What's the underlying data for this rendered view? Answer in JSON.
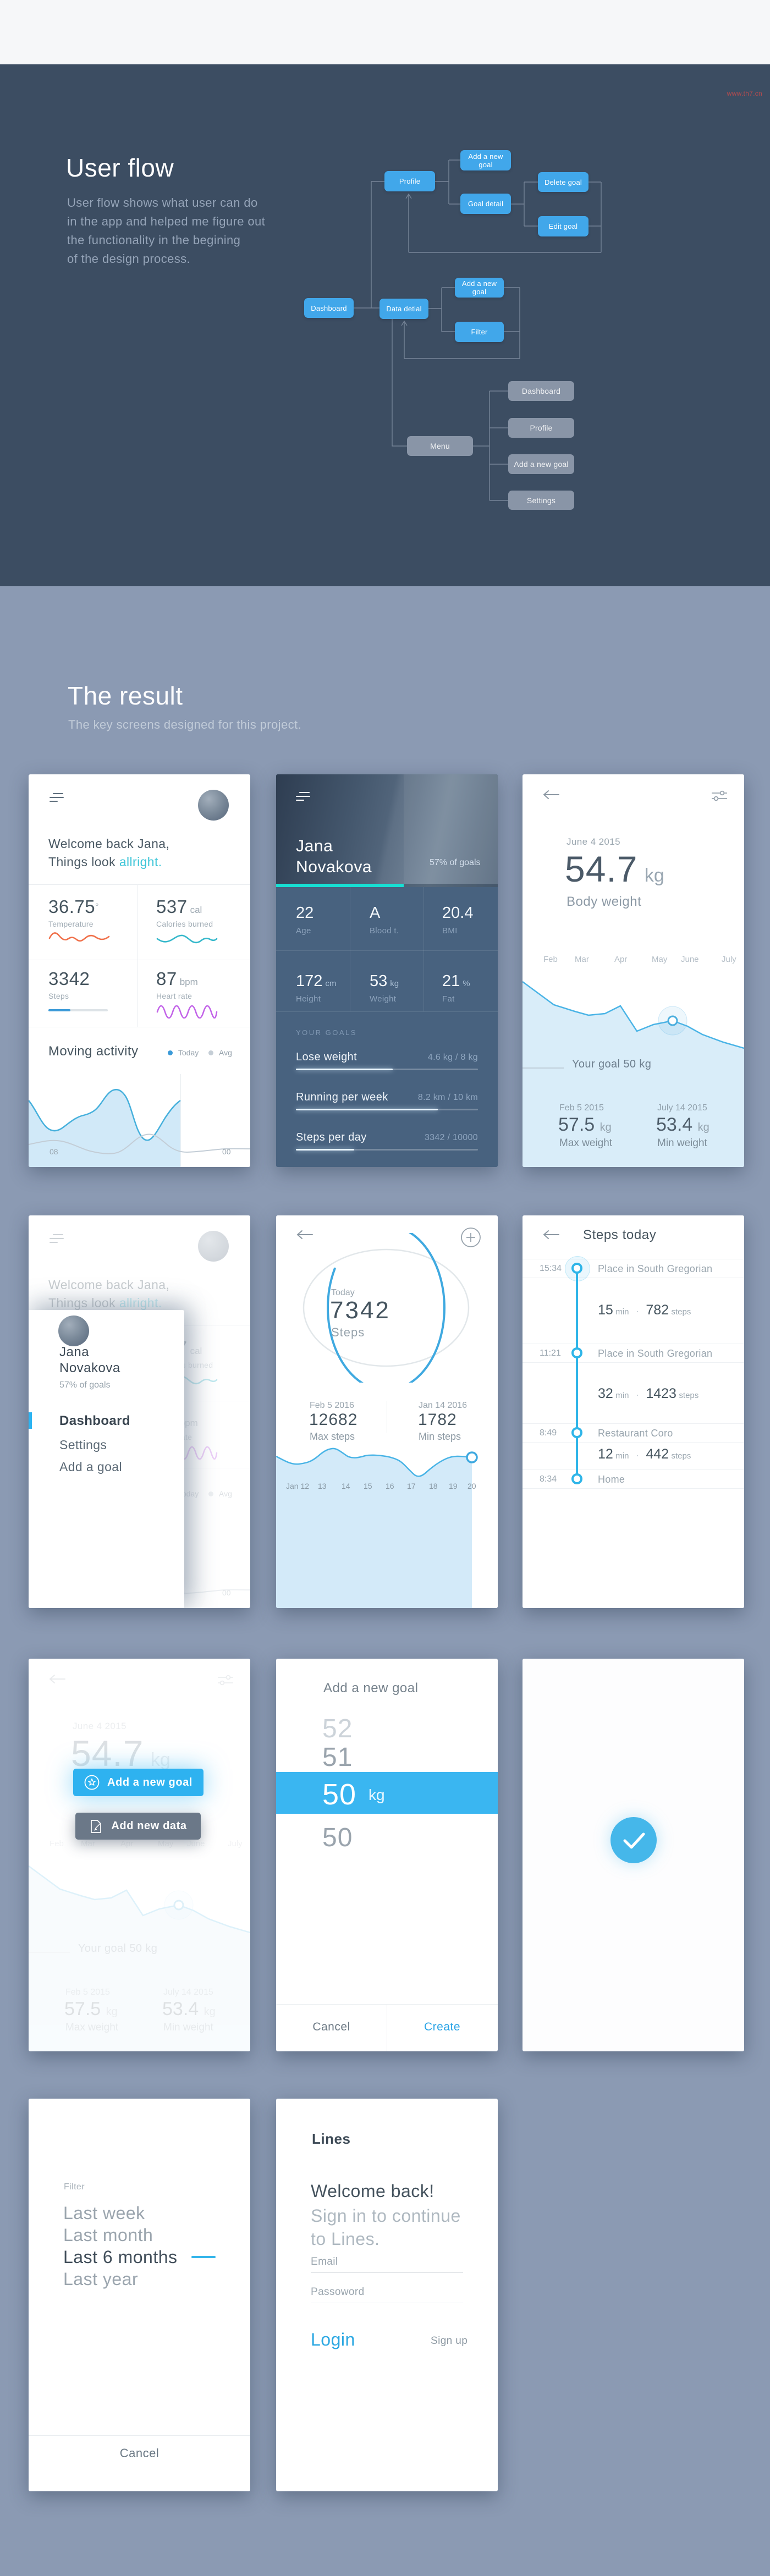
{
  "watermark": "www.th7.cn",
  "userflow": {
    "title": "User flow",
    "desc1": "User flow shows what user can do",
    "desc2": "in the app and helped me figure out",
    "desc3": "the functionality in the begining",
    "desc4": "of the design process.",
    "nodes": {
      "profile": "Profile",
      "add_goal_top": "Add a new goal",
      "goal_detail": "Goal detail",
      "delete_goal": "Delete goal",
      "edit_goal": "Edit goal",
      "dashboard": "Dashboard",
      "data_detail": "Data detial",
      "add_goal_mid": "Add a new goal",
      "filter": "Filter",
      "menu": "Menu",
      "menu_dashboard": "Dashboard",
      "menu_profile": "Profile",
      "menu_add_goal": "Add a new goal",
      "menu_settings": "Settings"
    }
  },
  "result": {
    "title": "The result",
    "subtitle": "The key screens designed for this project."
  },
  "dashboard": {
    "welcome1": "Welcome back Jana,",
    "welcome2": "Things look ",
    "welcome_accent": "allright.",
    "temp_value": "36.75",
    "temp_unit": "°",
    "temp_label": "Temperature",
    "cal_value": "537",
    "cal_unit": "cal",
    "cal_label": "Calories burned",
    "steps_value": "3342",
    "steps_label": "Steps",
    "hr_value": "87",
    "hr_unit": "bpm",
    "hr_label": "Heart rate",
    "activity_title": "Moving activity",
    "legend_today": "Today",
    "legend_avg": "Avg",
    "x_start": "08",
    "x_end": "00"
  },
  "profile": {
    "name1": "Jana",
    "name2": "Novakova",
    "goals_pct": "57% of goals",
    "stats": [
      {
        "v": "22",
        "u": "",
        "l": "Age"
      },
      {
        "v": "A",
        "u": "",
        "l": "Blood t."
      },
      {
        "v": "20.4",
        "u": "",
        "l": "BMI"
      },
      {
        "v": "172",
        "u": "cm",
        "l": "Height"
      },
      {
        "v": "53",
        "u": "kg",
        "l": "Weight"
      },
      {
        "v": "21",
        "u": "%",
        "l": "Fat"
      }
    ],
    "goals_heading": "YOUR GOALS",
    "goals": [
      {
        "name": "Lose weight",
        "value": "4.6 kg / 8 kg"
      },
      {
        "name": "Running per week",
        "value": "8.2 km / 10 km"
      },
      {
        "name": "Steps per day",
        "value": "3342 / 10000"
      }
    ]
  },
  "weight": {
    "date": "June 4 2015",
    "value": "54.7",
    "unit": "kg",
    "label": "Body weight",
    "months": [
      "Feb",
      "Mar",
      "Apr",
      "May",
      "June",
      "July"
    ],
    "goal_label": "Your goal 50 kg",
    "max_date": "Feb 5 2015",
    "max_value": "57.5",
    "max_unit": "kg",
    "max_label": "Max weight",
    "min_date": "July 14 2015",
    "min_value": "53.4",
    "min_unit": "kg",
    "min_label": "Min weight"
  },
  "menu": {
    "name1": "Jana",
    "name2": "Novakova",
    "goals_pct": "57% of goals",
    "item_dashboard": "Dashboard",
    "item_settings": "Settings",
    "item_add_goal": "Add a goal"
  },
  "steps_ring": {
    "today_label": "Today",
    "value": "7342",
    "unit": "Steps",
    "max_date": "Feb 5 2016",
    "max_value": "12682",
    "max_label": "Max steps",
    "min_date": "Jan 14 2016",
    "min_value": "1782",
    "min_label": "Min steps",
    "x_labels": [
      "Jan 12",
      "13",
      "14",
      "15",
      "16",
      "17",
      "18",
      "19",
      "20"
    ]
  },
  "steps_today": {
    "title": "Steps today",
    "events": [
      {
        "time": "15:34",
        "place": "Place in South Gregorian"
      },
      {
        "time": "11:21",
        "place": "Place in South Gregorian"
      },
      {
        "time": "8:49",
        "place": "Restaurant Coro"
      },
      {
        "time": "8:34",
        "place": "Home"
      }
    ],
    "segments": [
      {
        "min": "15",
        "min_unit": "min",
        "sep": "·",
        "steps": "782",
        "steps_unit": "steps"
      },
      {
        "min": "32",
        "min_unit": "min",
        "sep": "·",
        "steps": "1423",
        "steps_unit": "steps"
      },
      {
        "min": "12",
        "min_unit": "min",
        "sep": "·",
        "steps": "442",
        "steps_unit": "steps"
      }
    ]
  },
  "overlay": {
    "add_goal": "Add a new goal",
    "add_data": "Add new data"
  },
  "picker": {
    "title": "Add a new goal",
    "above2": "52",
    "above1": "51",
    "selected": "50",
    "selected_unit": "kg",
    "below1": "50",
    "cancel": "Cancel",
    "create": "Create"
  },
  "filter": {
    "label": "Filter",
    "opt1": "Last week",
    "opt2": "Last month",
    "opt3": "Last 6 months",
    "opt4": "Last year",
    "cancel": "Cancel"
  },
  "login": {
    "brand": "Lines",
    "headline": "Welcome back!",
    "sub1": "Sign in to continue",
    "sub2": "to Lines.",
    "email_label": "Email",
    "password_label": "Passoword",
    "login": "Login",
    "signup": "Sign up"
  }
}
